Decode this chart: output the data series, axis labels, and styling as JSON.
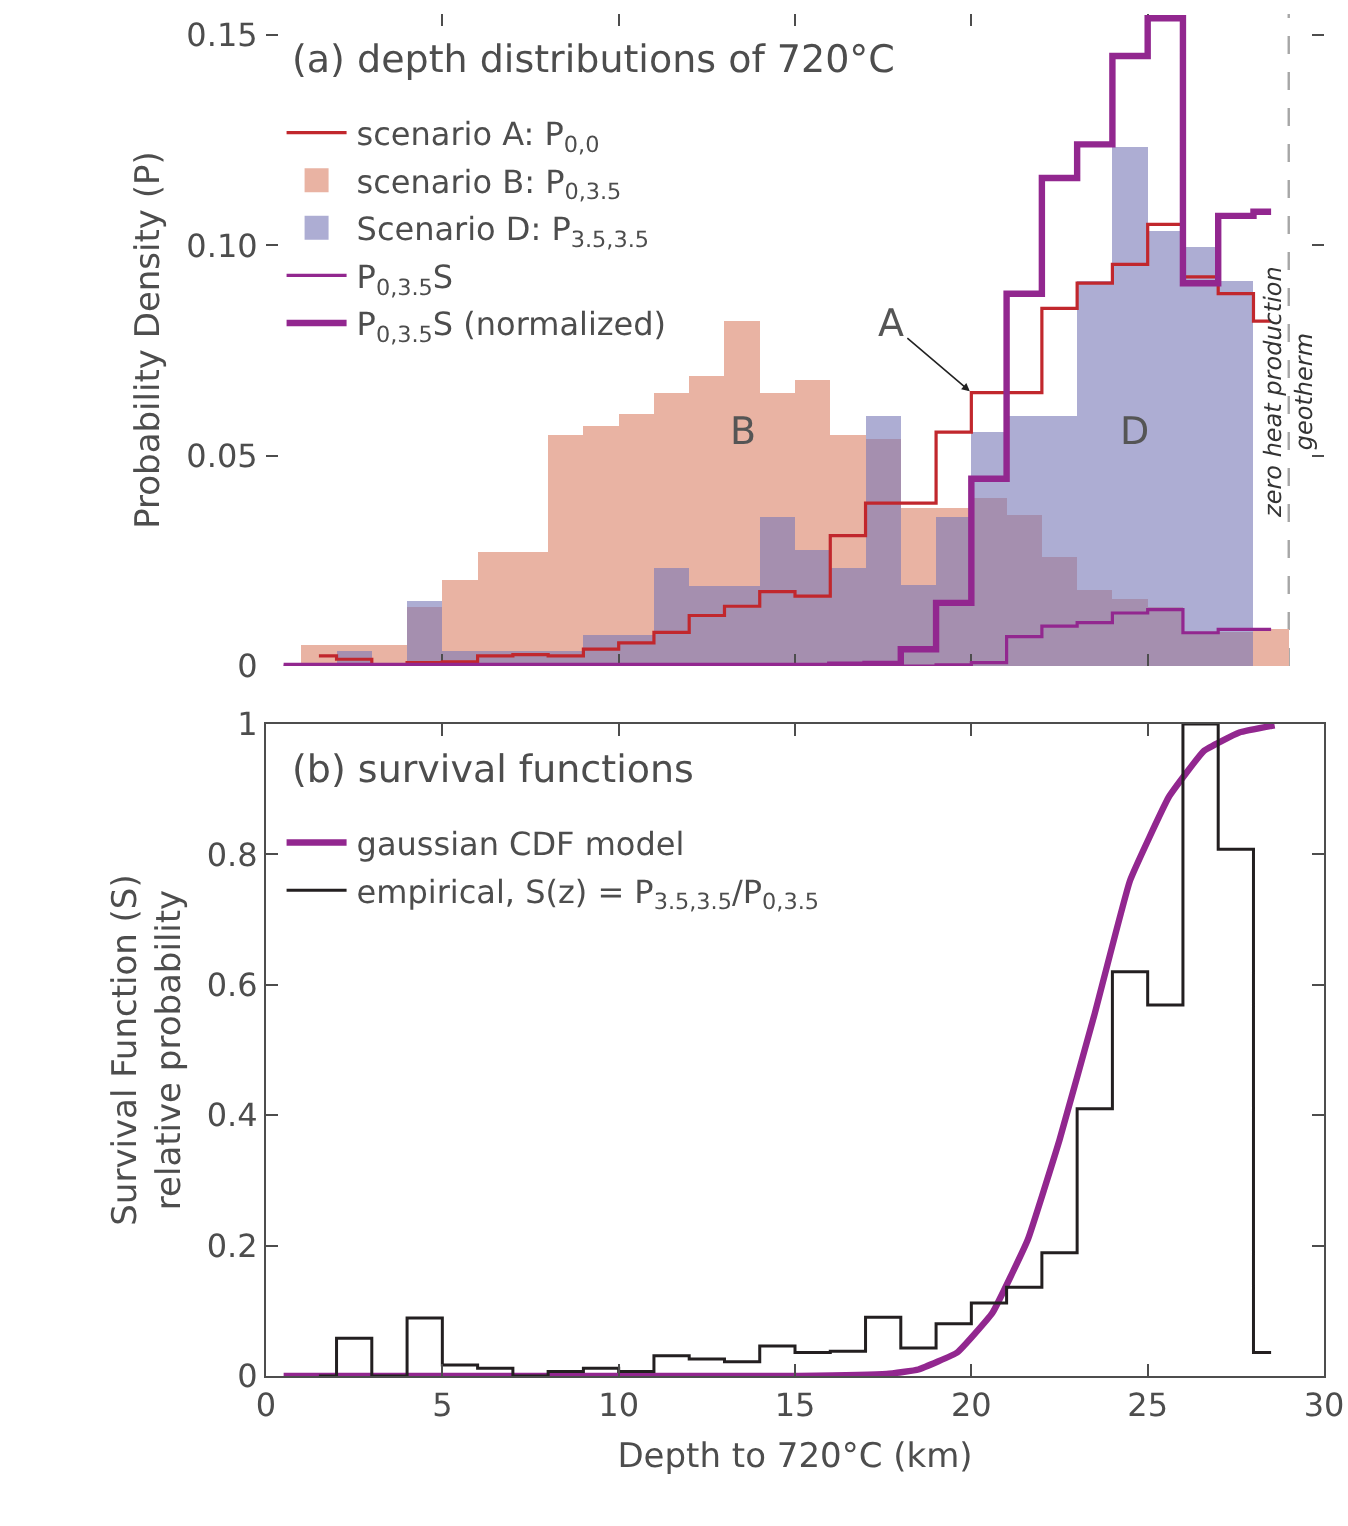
{
  "chart_data": [
    {
      "type": "histogram",
      "title": "(a) depth distributions of 720°C",
      "ylabel": "Probability Density (P)",
      "bins": [
        0,
        1,
        2,
        3,
        4,
        5,
        6,
        7,
        8,
        9,
        10,
        11,
        12,
        13,
        14,
        15,
        16,
        17,
        18,
        19,
        20,
        21,
        22,
        23,
        24,
        25,
        26,
        27,
        28,
        29
      ],
      "series": [
        {
          "name": "scenario A: P$_{0,0}$",
          "type": "step",
          "color": "#c1272d",
          "x": [
            1.5,
            2.5,
            3.5,
            4.5,
            5.5,
            6.5,
            7.5,
            8.5,
            9.5,
            10.5,
            11.5,
            12.5,
            13.5,
            14.5,
            15.5,
            16.5,
            17.5,
            18.5,
            19.5,
            20.5,
            21.5,
            22.5,
            23.5,
            24.5,
            25.5,
            26.5,
            27.5,
            28.5
          ],
          "values": [
            0.0024,
            0.0016,
            0,
            0.0008,
            0.001,
            0.0024,
            0.0027,
            0.0024,
            0.004,
            0.0055,
            0.008,
            0.012,
            0.0142,
            0.0177,
            0.0166,
            0.031,
            0.0387,
            0.0387,
            0.0556,
            0.065,
            0.065,
            0.085,
            0.091,
            0.0955,
            0.105,
            0.0925,
            0.0885,
            0.082
          ]
        },
        {
          "name": "scenario B: P$_{0,3.5}$",
          "color": "#e9b3a3",
          "values": [
            null,
            0.005,
            0.005,
            0.005,
            0.014,
            0.0205,
            0.027,
            0.027,
            0.055,
            0.057,
            0.06,
            0.065,
            0.069,
            0.082,
            0.065,
            0.068,
            0.055,
            0.054,
            0.0376,
            0.0376,
            0.04,
            0.036,
            0.026,
            0.018,
            0.016,
            0.014,
            0.008,
            0.008,
            0.0087
          ]
        },
        {
          "name": "Scenario D: P$_{3.5,3.5}$",
          "color": "#aeaed4",
          "values": [
            null,
            0,
            0.0035,
            0,
            0.0155,
            0.0035,
            0.0035,
            0.0035,
            0.0035,
            0.0074,
            0.0074,
            0.0234,
            0.019,
            0.019,
            0.0355,
            0.0275,
            0.0234,
            0.0595,
            0.0193,
            0.0355,
            0.0556,
            0.0595,
            0.0595,
            0.0916,
            0.1235,
            0.1035,
            0.0995,
            0.0916,
            0
          ]
        },
        {
          "name": "P$_{0,3.5}$S",
          "type": "step",
          "color": "#92278f",
          "x": [
            0.5,
            1.5,
            2.5,
            3.5,
            4.5,
            5.5,
            6.5,
            7.5,
            8.5,
            9.5,
            10.5,
            11.5,
            12.5,
            13.5,
            14.5,
            15.5,
            16.5,
            17.5,
            18.5,
            19.5,
            20.5,
            21.5,
            22.5,
            23.5,
            24.5,
            25.5,
            26.5,
            27.5,
            28.5
          ],
          "values": [
            0,
            0,
            0,
            0,
            0,
            0,
            0,
            0,
            0,
            0,
            0,
            0,
            0,
            0,
            0,
            0,
            0,
            0,
            0,
            0.0003,
            0.0008,
            0.007,
            0.0095,
            0.0103,
            0.0126,
            0.0134,
            0.0079,
            0.0087,
            0.0087
          ]
        },
        {
          "name": "P$_{0,3.5}$S (normalized)",
          "type": "step",
          "color": "#92278f",
          "x": [
            0.5,
            1.5,
            2.5,
            3.5,
            4.5,
            5.5,
            6.5,
            7.5,
            8.5,
            9.5,
            10.5,
            11.5,
            12.5,
            13.5,
            14.5,
            15.5,
            16.5,
            17.5,
            18.5,
            19.5,
            20.5,
            21.5,
            22.5,
            23.5,
            24.5,
            25.5,
            26.5,
            27.5,
            28.5
          ],
          "values": [
            0,
            0,
            0,
            0,
            0,
            0,
            0,
            0,
            0,
            0,
            0,
            0,
            0,
            0,
            0,
            0,
            0.0003,
            0.0005,
            0.004,
            0.015,
            0.0445,
            0.0885,
            0.116,
            0.124,
            0.145,
            0.154,
            0.091,
            0.107,
            0.108
          ]
        }
      ],
      "xlim": [
        0,
        30
      ],
      "xticks": [
        {
          "value": 0,
          "label": null
        },
        {
          "value": 5,
          "label": null
        },
        {
          "value": 10,
          "label": null
        },
        {
          "value": 15,
          "label": null
        },
        {
          "value": 20,
          "label": null
        },
        {
          "value": 25,
          "label": null
        },
        {
          "value": 30,
          "label": null
        }
      ],
      "ylim": [
        0,
        0.155
      ],
      "yticks": [
        0,
        0.05,
        {
          "value": 0.1,
          "label": "0.10"
        },
        0.15
      ],
      "tick_labels": "y",
      "legend": "top left",
      "ref_lines": [
        {
          "axis": "x",
          "value": 29,
          "label": "zero heat production\ngeotherm",
          "color": "#a6a6a6",
          "line_style": "dashed"
        }
      ],
      "annotations": [
        {
          "text": "A",
          "x": 20,
          "y": 0.065
        },
        "B",
        "D"
      ]
    },
    {
      "type": "step",
      "title": "(b) survival functions",
      "xlabel": "Depth to 720°C (km)",
      "ylabel": "Survival Function (S)\nrelative probability",
      "series": [
        {
          "name": "gaussian CDF model",
          "type": "line",
          "color": "#92278f",
          "x": [
            0.5,
            10,
            15.1,
            17.6,
            18.5,
            19.6,
            20.6,
            21.6,
            22.5,
            23.5,
            24.5,
            25.6,
            26.6,
            27.6,
            28.6
          ],
          "values": [
            0,
            0,
            0,
            0.003,
            0.01,
            0.036,
            0.097,
            0.209,
            0.362,
            0.556,
            0.76,
            0.888,
            0.959,
            0.987,
            0.998
          ]
        },
        {
          "name": "empirical, S(z) = P$_{3.5,3.5}$/P$_{0,3.5}$",
          "color": "#231f20",
          "x": [
            1.5,
            2.5,
            3.5,
            4.5,
            5.5,
            6.5,
            7.5,
            8.5,
            9.5,
            10.5,
            11.5,
            12.5,
            13.5,
            14.5,
            15.5,
            16.5,
            17.5,
            18.5,
            19.5,
            20.5,
            21.5,
            22.5,
            23.5,
            24.5,
            25.5,
            26.5,
            27.5,
            28.5
          ],
          "values": [
            0,
            0.058,
            0,
            0.089,
            0.017,
            0.012,
            0,
            0.007,
            0.012,
            0.007,
            0.031,
            0.026,
            0.022,
            0.046,
            0.036,
            0.038,
            0.09,
            0.043,
            0.08,
            0.112,
            0.136,
            0.189,
            0.41,
            0.62,
            0.569,
            1,
            0.808,
            0.036
          ]
        }
      ],
      "xlim": [
        0,
        30
      ],
      "xticks": [
        0,
        5,
        10,
        15,
        20,
        25,
        30
      ],
      "ylim": [
        0,
        1
      ],
      "yticks": [
        0,
        0.2,
        0.4,
        0.6,
        0.8,
        1
      ],
      "legend": "top left"
    }
  ]
}
